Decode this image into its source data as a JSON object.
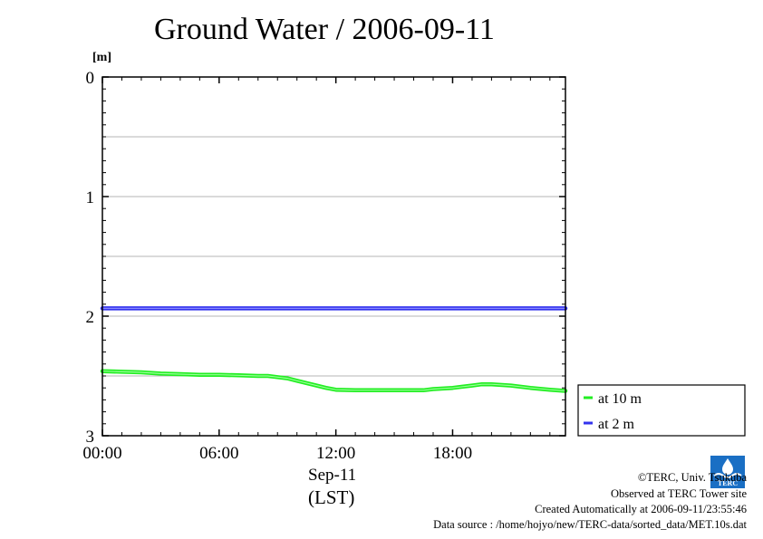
{
  "chart_data": {
    "type": "line",
    "title": "Ground Water / 2006-09-11",
    "y_unit": "[m]",
    "y_axis_inverted": true,
    "ylim": [
      0,
      3
    ],
    "y_ticks": [
      "0",
      "1",
      "2",
      "3"
    ],
    "y_gridlines": [
      0.5,
      1,
      1.5,
      2,
      2.5
    ],
    "x_ticks": [
      "00:00",
      "06:00",
      "12:00",
      "18:00"
    ],
    "xlim_hours": [
      0,
      23.8
    ],
    "x_date": "Sep-11",
    "x_timezone": "(LST)",
    "legend_position": "bottom-right-outside",
    "series": [
      {
        "name": "at 10 m",
        "color": "#22ee22",
        "x_hours": [
          0,
          1,
          2,
          3,
          4,
          5,
          6,
          7,
          8,
          8.5,
          9,
          9.5,
          10,
          10.5,
          11,
          11.5,
          12,
          13,
          14,
          15,
          16,
          16.5,
          17,
          18,
          19,
          19.5,
          20,
          21,
          22,
          23,
          23.8
        ],
        "values": [
          2.46,
          2.465,
          2.47,
          2.48,
          2.485,
          2.49,
          2.49,
          2.495,
          2.5,
          2.5,
          2.51,
          2.52,
          2.54,
          2.56,
          2.58,
          2.6,
          2.615,
          2.62,
          2.62,
          2.62,
          2.62,
          2.62,
          2.61,
          2.6,
          2.58,
          2.57,
          2.57,
          2.58,
          2.6,
          2.615,
          2.625
        ]
      },
      {
        "name": "at 2 m",
        "color": "#3333ee",
        "x_hours": [
          0,
          6,
          12,
          18,
          23.8
        ],
        "values": [
          1.935,
          1.935,
          1.935,
          1.935,
          1.935
        ]
      }
    ]
  },
  "credits": {
    "copyright": "©TERC, Univ. Tsukuba",
    "observed": "Observed at TERC Tower site",
    "created": "Created Automatically at 2006-09-11/23:55:46",
    "source": "Data source : /home/hojyo/new/TERC-data/sorted_data/MET.10s.dat"
  },
  "logo": {
    "text": "TERC",
    "color": "#1a6fc4"
  }
}
